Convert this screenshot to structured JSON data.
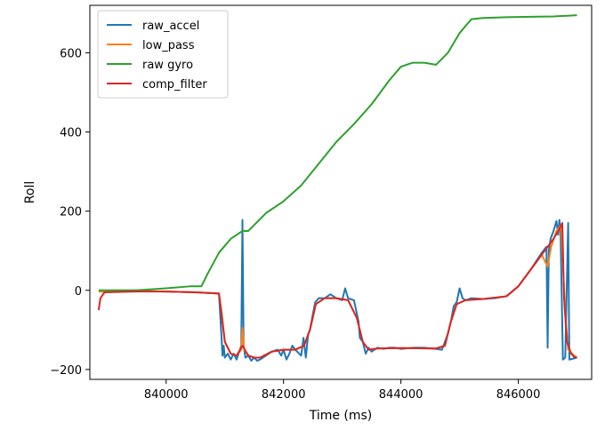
{
  "chart_data": {
    "type": "line",
    "title": "",
    "xlabel": "Time (ms)",
    "ylabel": "Roll",
    "xlim": [
      838700,
      847250
    ],
    "ylim": [
      -225,
      720
    ],
    "grid": false,
    "legend_position": "top-left",
    "x_ticks": [
      840000,
      842000,
      844000,
      846000
    ],
    "x_tick_labels": [
      "840000",
      "842000",
      "844000",
      "846000"
    ],
    "y_ticks": [
      -200,
      0,
      200,
      400,
      600
    ],
    "y_tick_labels": [
      "−200",
      "0",
      "200",
      "400",
      "600"
    ],
    "series": [
      {
        "name": "raw_accel",
        "color": "#1f77b4",
        "points": [
          [
            838850,
            -3
          ],
          [
            839000,
            -3
          ],
          [
            839500,
            -2
          ],
          [
            840000,
            -3
          ],
          [
            840500,
            -5
          ],
          [
            840900,
            -8
          ],
          [
            840940,
            -110
          ],
          [
            840960,
            -165
          ],
          [
            840980,
            -140
          ],
          [
            841000,
            -170
          ],
          [
            841050,
            -160
          ],
          [
            841100,
            -175
          ],
          [
            841150,
            -160
          ],
          [
            841200,
            -175
          ],
          [
            841280,
            -140
          ],
          [
            841300,
            178
          ],
          [
            841320,
            -140
          ],
          [
            841350,
            -170
          ],
          [
            841400,
            -165
          ],
          [
            841450,
            -178
          ],
          [
            841500,
            -170
          ],
          [
            841550,
            -178
          ],
          [
            841600,
            -175
          ],
          [
            841700,
            -165
          ],
          [
            841800,
            -155
          ],
          [
            841900,
            -150
          ],
          [
            841960,
            -165
          ],
          [
            842000,
            -150
          ],
          [
            842050,
            -175
          ],
          [
            842100,
            -160
          ],
          [
            842150,
            -140
          ],
          [
            842200,
            -150
          ],
          [
            842300,
            -165
          ],
          [
            842340,
            -120
          ],
          [
            842380,
            -170
          ],
          [
            842420,
            -110
          ],
          [
            842450,
            -100
          ],
          [
            842500,
            -60
          ],
          [
            842540,
            -30
          ],
          [
            842600,
            -20
          ],
          [
            842700,
            -20
          ],
          [
            842800,
            -10
          ],
          [
            842900,
            -20
          ],
          [
            843000,
            -25
          ],
          [
            843050,
            5
          ],
          [
            843100,
            -20
          ],
          [
            843200,
            -25
          ],
          [
            843280,
            -80
          ],
          [
            843300,
            -120
          ],
          [
            843350,
            -130
          ],
          [
            843400,
            -160
          ],
          [
            843450,
            -145
          ],
          [
            843500,
            -155
          ],
          [
            843600,
            -145
          ],
          [
            843700,
            -148
          ],
          [
            843800,
            -145
          ],
          [
            843900,
            -145
          ],
          [
            844000,
            -148
          ],
          [
            844200,
            -145
          ],
          [
            844400,
            -145
          ],
          [
            844600,
            -148
          ],
          [
            844700,
            -150
          ],
          [
            844800,
            -110
          ],
          [
            844850,
            -80
          ],
          [
            844900,
            -40
          ],
          [
            844950,
            -30
          ],
          [
            845000,
            5
          ],
          [
            845050,
            -20
          ],
          [
            845100,
            -25
          ],
          [
            845200,
            -20
          ],
          [
            845400,
            -22
          ],
          [
            845600,
            -20
          ],
          [
            845800,
            -15
          ],
          [
            846000,
            10
          ],
          [
            846200,
            50
          ],
          [
            846400,
            95
          ],
          [
            846480,
            110
          ],
          [
            846500,
            -145
          ],
          [
            846520,
            100
          ],
          [
            846550,
            130
          ],
          [
            846600,
            150
          ],
          [
            846650,
            175
          ],
          [
            846680,
            140
          ],
          [
            846700,
            178
          ],
          [
            846720,
            150
          ],
          [
            846760,
            -175
          ],
          [
            846800,
            -170
          ],
          [
            846850,
            170
          ],
          [
            846870,
            -175
          ],
          [
            846950,
            -172
          ],
          [
            847000,
            -170
          ]
        ]
      },
      {
        "name": "low_pass",
        "color": "#ff7f0e",
        "points": [
          [
            838850,
            -3
          ],
          [
            839000,
            -3
          ],
          [
            839500,
            -2
          ],
          [
            840000,
            -3
          ],
          [
            840500,
            -5
          ],
          [
            840900,
            -8
          ],
          [
            840950,
            -60
          ],
          [
            841000,
            -130
          ],
          [
            841100,
            -160
          ],
          [
            841200,
            -165
          ],
          [
            841280,
            -150
          ],
          [
            841300,
            -95
          ],
          [
            841330,
            -150
          ],
          [
            841400,
            -165
          ],
          [
            841500,
            -170
          ],
          [
            841600,
            -170
          ],
          [
            841800,
            -155
          ],
          [
            842000,
            -150
          ],
          [
            842200,
            -150
          ],
          [
            842350,
            -140
          ],
          [
            842450,
            -100
          ],
          [
            842550,
            -35
          ],
          [
            842700,
            -20
          ],
          [
            842900,
            -20
          ],
          [
            843100,
            -25
          ],
          [
            843250,
            -70
          ],
          [
            843350,
            -130
          ],
          [
            843450,
            -150
          ],
          [
            843600,
            -147
          ],
          [
            844000,
            -146
          ],
          [
            844600,
            -147
          ],
          [
            844750,
            -140
          ],
          [
            844850,
            -80
          ],
          [
            844950,
            -35
          ],
          [
            845100,
            -25
          ],
          [
            845400,
            -22
          ],
          [
            845800,
            -15
          ],
          [
            846000,
            10
          ],
          [
            846200,
            50
          ],
          [
            846400,
            90
          ],
          [
            846500,
            60
          ],
          [
            846560,
            110
          ],
          [
            846650,
            150
          ],
          [
            846730,
            165
          ],
          [
            846800,
            -60
          ],
          [
            846850,
            -150
          ],
          [
            846950,
            -165
          ],
          [
            847000,
            -170
          ]
        ]
      },
      {
        "name": "raw gyro",
        "color": "#2ca02c",
        "points": [
          [
            838850,
            0
          ],
          [
            839500,
            0
          ],
          [
            840000,
            5
          ],
          [
            840400,
            10
          ],
          [
            840600,
            10
          ],
          [
            840700,
            40
          ],
          [
            840900,
            95
          ],
          [
            841100,
            130
          ],
          [
            841300,
            150
          ],
          [
            841400,
            150
          ],
          [
            841700,
            195
          ],
          [
            842000,
            225
          ],
          [
            842300,
            265
          ],
          [
            842600,
            320
          ],
          [
            842900,
            375
          ],
          [
            843200,
            420
          ],
          [
            843500,
            470
          ],
          [
            843800,
            530
          ],
          [
            844000,
            565
          ],
          [
            844200,
            575
          ],
          [
            844400,
            575
          ],
          [
            844600,
            570
          ],
          [
            844800,
            600
          ],
          [
            845000,
            650
          ],
          [
            845200,
            685
          ],
          [
            845400,
            688
          ],
          [
            845800,
            690
          ],
          [
            846200,
            691
          ],
          [
            846600,
            692
          ],
          [
            847000,
            695
          ]
        ]
      },
      {
        "name": "comp_filter",
        "color": "#d62728",
        "points": [
          [
            838850,
            -50
          ],
          [
            838880,
            -20
          ],
          [
            838950,
            -5
          ],
          [
            839500,
            -3
          ],
          [
            840000,
            -3
          ],
          [
            840500,
            -5
          ],
          [
            840900,
            -8
          ],
          [
            840950,
            -70
          ],
          [
            841000,
            -130
          ],
          [
            841100,
            -160
          ],
          [
            841200,
            -165
          ],
          [
            841300,
            -140
          ],
          [
            841400,
            -165
          ],
          [
            841500,
            -170
          ],
          [
            841600,
            -170
          ],
          [
            841800,
            -155
          ],
          [
            842000,
            -150
          ],
          [
            842200,
            -150
          ],
          [
            842350,
            -140
          ],
          [
            842450,
            -100
          ],
          [
            842550,
            -35
          ],
          [
            842700,
            -20
          ],
          [
            842900,
            -20
          ],
          [
            843100,
            -25
          ],
          [
            843250,
            -70
          ],
          [
            843350,
            -130
          ],
          [
            843450,
            -150
          ],
          [
            843600,
            -147
          ],
          [
            844000,
            -146
          ],
          [
            844600,
            -147
          ],
          [
            844750,
            -140
          ],
          [
            844850,
            -80
          ],
          [
            844950,
            -35
          ],
          [
            845100,
            -25
          ],
          [
            845400,
            -22
          ],
          [
            845800,
            -15
          ],
          [
            846000,
            10
          ],
          [
            846200,
            50
          ],
          [
            846400,
            90
          ],
          [
            846600,
            130
          ],
          [
            846700,
            155
          ],
          [
            846750,
            170
          ],
          [
            846780,
            -20
          ],
          [
            846830,
            -130
          ],
          [
            846900,
            -160
          ],
          [
            846950,
            -168
          ],
          [
            847000,
            -170
          ]
        ]
      }
    ]
  }
}
